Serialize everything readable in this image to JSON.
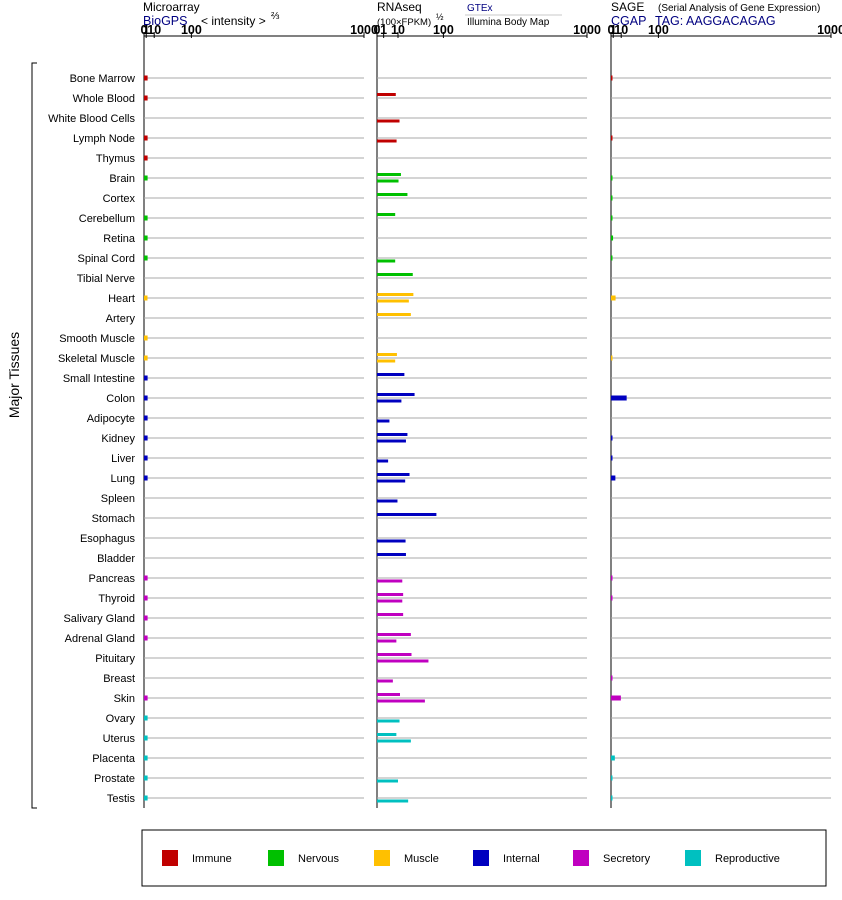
{
  "chart_data": {
    "type": "bar",
    "ylabel": "Major Tissues",
    "tissues": [
      "Bone Marrow",
      "Whole Blood",
      "White Blood Cells",
      "Lymph Node",
      "Thymus",
      "Brain",
      "Cortex",
      "Cerebellum",
      "Retina",
      "Spinal Cord",
      "Tibial Nerve",
      "Heart",
      "Artery",
      "Smooth Muscle",
      "Skeletal Muscle",
      "Small Intestine",
      "Colon",
      "Adipocyte",
      "Kidney",
      "Liver",
      "Lung",
      "Spleen",
      "Stomach",
      "Esophagus",
      "Bladder",
      "Pancreas",
      "Thyroid",
      "Salivary Gland",
      "Adrenal Gland",
      "Pituitary",
      "Breast",
      "Skin",
      "Ovary",
      "Uterus",
      "Placenta",
      "Prostate",
      "Testis"
    ],
    "groups": [
      "immune",
      "immune",
      "immune",
      "immune",
      "immune",
      "nervous",
      "nervous",
      "nervous",
      "nervous",
      "nervous",
      "nervous",
      "muscle",
      "muscle",
      "muscle",
      "muscle",
      "internal",
      "internal",
      "internal",
      "internal",
      "internal",
      "internal",
      "internal",
      "internal",
      "internal",
      "internal",
      "secretory",
      "secretory",
      "secretory",
      "secretory",
      "secretory",
      "secretory",
      "secretory",
      "reproductive",
      "reproductive",
      "reproductive",
      "reproductive",
      "reproductive"
    ],
    "panels": [
      {
        "title": "Microarray",
        "subtitle": "BioGPS",
        "axis_note": "< intensity >",
        "axis_note_exp": "⅔",
        "ticks": [
          "0",
          "1",
          "10",
          "100",
          "1000"
        ],
        "values": [
          2.1,
          2.1,
          null,
          2.1,
          2.1,
          2.1,
          null,
          2.1,
          2.1,
          2.1,
          null,
          2.0,
          null,
          2.1,
          2.1,
          2.1,
          2.1,
          2.1,
          2.1,
          2.1,
          2.1,
          null,
          null,
          null,
          null,
          2.1,
          2.1,
          2.1,
          2.1,
          null,
          null,
          2.1,
          2.1,
          2.1,
          2.1,
          2.1,
          2.1
        ]
      },
      {
        "title": "RNAseq",
        "subtitle": "(100×FPKM)",
        "subtitle_exp": "½",
        "source_gtex": "GTEx",
        "source_ibm": "Illumina Body Map",
        "ticks": [
          "0",
          "1",
          "10",
          "100",
          "1000"
        ],
        "gtex": [
          null,
          8,
          null,
          null,
          null,
          13,
          21,
          7.5,
          null,
          null,
          29,
          30,
          26,
          null,
          9,
          17,
          32,
          null,
          21,
          null,
          24,
          null,
          80,
          null,
          19,
          null,
          15.5,
          15.5,
          26,
          27,
          null,
          12,
          null,
          8.5,
          null,
          null,
          null
        ],
        "ibm": [
          null,
          null,
          11.5,
          8.7,
          null,
          10.5,
          null,
          null,
          null,
          7.5,
          null,
          23,
          null,
          null,
          7.5,
          null,
          13.5,
          3.5,
          19,
          2.8,
          18,
          9.5,
          null,
          18.5,
          null,
          14.5,
          14.5,
          null,
          8.5,
          60,
          5.7,
          52,
          11.5,
          26,
          null,
          10,
          22
        ]
      },
      {
        "title": "SAGE",
        "subtitle_note": "(Serial Analysis of Gene Expression)",
        "subtitle": "CGAP",
        "tag": "TAG: AAGGACAGAG",
        "ticks": [
          "0",
          "1",
          "10",
          "100",
          "1000"
        ],
        "values": [
          0.05,
          null,
          null,
          0.05,
          null,
          0.03,
          0.03,
          0.03,
          0.9,
          0.03,
          null,
          3.0,
          null,
          null,
          0.03,
          null,
          19,
          null,
          0.06,
          0.06,
          2.8,
          null,
          null,
          null,
          null,
          0.05,
          0.05,
          null,
          null,
          null,
          0.05,
          9.5,
          null,
          null,
          2.3,
          0.03,
          0.03
        ]
      }
    ],
    "legend": [
      {
        "key": "immune",
        "label": "Immune",
        "color": "#c00000"
      },
      {
        "key": "nervous",
        "label": "Nervous",
        "color": "#00c000"
      },
      {
        "key": "muscle",
        "label": "Muscle",
        "color": "#ffc000"
      },
      {
        "key": "internal",
        "label": "Internal",
        "color": "#0000c0"
      },
      {
        "key": "secretory",
        "label": "Secretory",
        "color": "#c000c0"
      },
      {
        "key": "reproductive",
        "label": "Reproductive",
        "color": "#00c0c0"
      }
    ],
    "scale": "power-2/3 (microarray, SAGE), square-root (RNAseq)",
    "legend_position": "bottom"
  }
}
